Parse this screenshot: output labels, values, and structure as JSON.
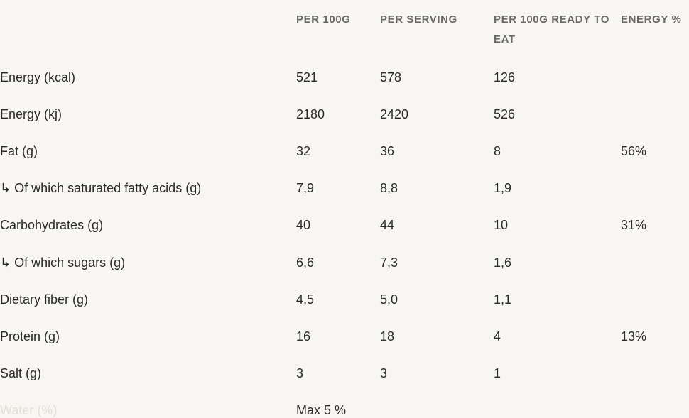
{
  "table": {
    "headers": {
      "per100g": "PER 100G",
      "perServing": "PER SERVING",
      "ready": "PER 100G READY TO EAT",
      "energy": "ENERGY %"
    },
    "rows": [
      {
        "label": "Energy (kcal)",
        "per100g": "521",
        "perServing": "578",
        "ready": "126"
      },
      {
        "label": "Energy (kj)",
        "per100g": "2180",
        "perServing": "2420",
        "ready": "526"
      },
      {
        "label": "Fat (g)",
        "per100g": "32",
        "perServing": "36",
        "ready": "8",
        "energy": "56%"
      },
      {
        "label": "↳ Of which saturated fatty acids (g)",
        "per100g": "7,9",
        "perServing": "8,8",
        "ready": "1,9"
      },
      {
        "label": "Carbohydrates (g)",
        "per100g": "40",
        "perServing": "44",
        "ready": "10",
        "energy": "31%"
      },
      {
        "label": "↳ Of which sugars (g)",
        "per100g": "6,6",
        "perServing": "7,3",
        "ready": "1,6"
      },
      {
        "label": "Dietary fiber (g)",
        "per100g": "4,5",
        "perServing": "5,0",
        "ready": "1,1"
      },
      {
        "label": "Protein (g)",
        "per100g": "16",
        "perServing": "18",
        "ready": "4",
        "energy": "13%"
      },
      {
        "label": "Salt (g)",
        "per100g": "3",
        "perServing": "3",
        "ready": "1"
      },
      {
        "label": "Water (%)",
        "per100g": "Max 5 %"
      }
    ]
  }
}
